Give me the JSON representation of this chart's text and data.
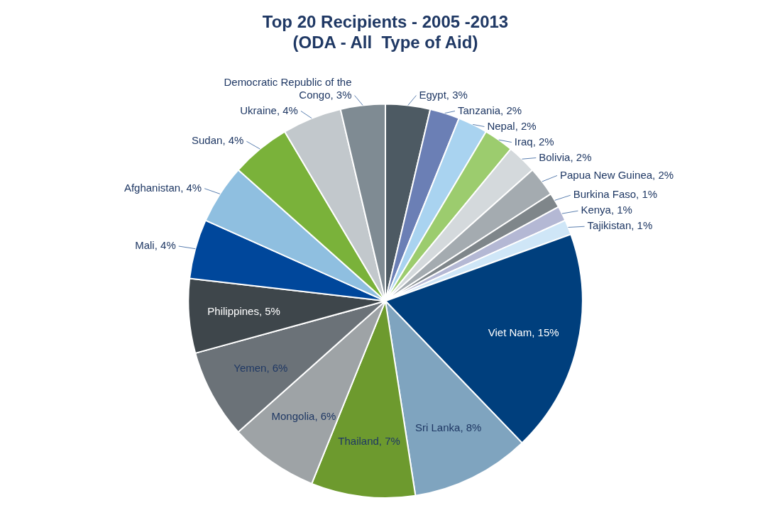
{
  "chart_data": {
    "type": "pie",
    "title": [
      "Top 20 Recipients - 2005 -2013",
      "(ODA - All  Type of Aid)"
    ],
    "categories": [
      "Egypt",
      "Tanzania",
      "Nepal",
      "Iraq",
      "Bolivia",
      "Papua New Guinea",
      "Burkina Faso",
      "Kenya",
      "Tajikistan",
      "Viet Nam",
      "Sri Lanka",
      "Thailand",
      "Mongolia",
      "Yemen",
      "Philippines",
      "Mali",
      "Afghanistan",
      "Sudan",
      "Ukraine",
      "Democratic Republic of the Congo"
    ],
    "values": [
      3,
      2,
      2,
      2,
      2,
      2,
      1,
      1,
      1,
      15,
      8,
      7,
      6,
      6,
      5,
      4,
      4,
      4,
      4,
      3
    ],
    "value_labels": [
      "3%",
      "2%",
      "2%",
      "2%",
      "2%",
      "2%",
      "1%",
      "1%",
      "1%",
      "15%",
      "8%",
      "7%",
      "6%",
      "6%",
      "5%",
      "4%",
      "4%",
      "4%",
      "4%",
      "3%"
    ],
    "colors": [
      "#4d5a63",
      "#6b7fb5",
      "#a9d3f0",
      "#9ccc6e",
      "#d4d9dc",
      "#a4abb0",
      "#7f868a",
      "#b4b8d4",
      "#cfe6f7",
      "#003f7d",
      "#7fa4bf",
      "#6d9a2e",
      "#9ea3a6",
      "#6b7278",
      "#3e464b",
      "#00479b",
      "#8fbfe0",
      "#7ab23a",
      "#c2c8cc",
      "#7f8b93"
    ],
    "legend": false
  }
}
